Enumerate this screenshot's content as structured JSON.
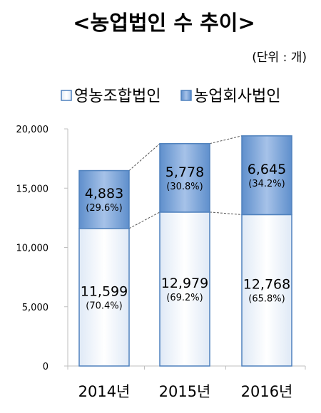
{
  "chart_data": {
    "type": "bar",
    "stacked": true,
    "title": "<농업법인 수 추이>",
    "unit_note": "(단위 : 개)",
    "categories": [
      "2014년",
      "2015년",
      "2016년"
    ],
    "series": [
      {
        "name": "영농조합법인",
        "values": [
          11599,
          12979,
          12768
        ],
        "labels": [
          "11,599",
          "12,979",
          "12,768"
        ],
        "pct_labels": [
          "(70.4%)",
          "(69.2%)",
          "(65.8%)"
        ],
        "color": "#ffffff",
        "edge_color": "#4f81bd"
      },
      {
        "name": "농업회사법인",
        "values": [
          4883,
          5778,
          6645
        ],
        "labels": [
          "4,883",
          "5,778",
          "6,645"
        ],
        "pct_labels": [
          "(29.6%)",
          "(30.8%)",
          "(34.2%)"
        ],
        "color": "#7aa2d6",
        "edge_color": "#4f81bd"
      }
    ],
    "ylim": [
      0,
      20000
    ],
    "yticks": [
      0,
      5000,
      10000,
      15000,
      20000
    ],
    "ytick_labels": [
      "0",
      "5,000",
      "10,000",
      "15,000",
      "20,000"
    ],
    "legend_position": "top",
    "grid": false,
    "connector_lines": true
  }
}
